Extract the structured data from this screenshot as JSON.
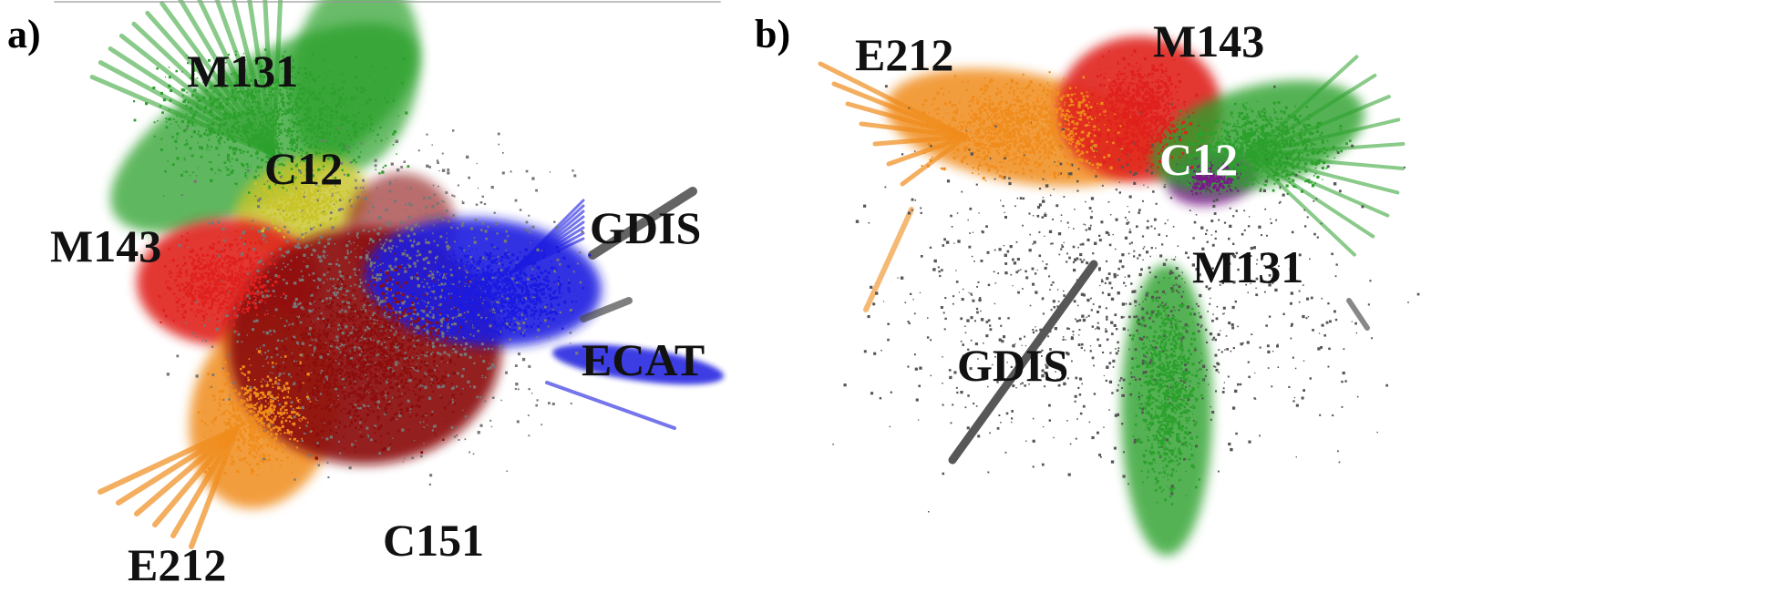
{
  "panels": [
    {
      "label": "a)",
      "clusters": [
        {
          "key": "M131",
          "label": "M131",
          "color": "#2ca02c"
        },
        {
          "key": "C12",
          "label": "C12",
          "color": "#c8c428"
        },
        {
          "key": "M143",
          "label": "M143",
          "color": "#e0201c"
        },
        {
          "key": "E212",
          "label": "E212",
          "color": "#f08c1c"
        },
        {
          "key": "C151",
          "label": "C151",
          "color": "#8b0d0d"
        },
        {
          "key": "ECAT",
          "label": "ECAT",
          "color": "#1a1ae0"
        },
        {
          "key": "GDIS",
          "label": "GDIS",
          "color": "#4a4a4a"
        }
      ]
    },
    {
      "label": "b)",
      "clusters": [
        {
          "key": "E212",
          "label": "E212",
          "color": "#f08c1c"
        },
        {
          "key": "M143",
          "label": "M143",
          "color": "#e0201c"
        },
        {
          "key": "C12",
          "label": "C12",
          "color": "#7a1a8a"
        },
        {
          "key": "M131",
          "label": "M131",
          "color": "#2ca02c"
        },
        {
          "key": "GDIS",
          "label": "GDIS",
          "color": "#3a3a3a"
        }
      ]
    }
  ]
}
